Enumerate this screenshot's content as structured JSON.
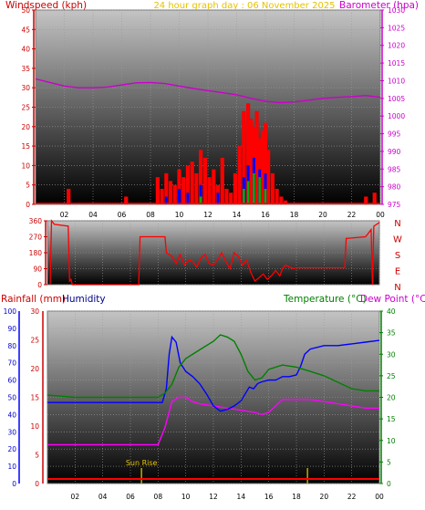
{
  "header": {
    "windspeed_label": "Windspeed (kph)",
    "graph_date_label": "24 hour graph day : 06 November 2025",
    "barometer_label": "Barometer (hpa)"
  },
  "footer_labels": {
    "rainfall_label": "Rainfall (mm)",
    "humidity_label": "Humidity",
    "temperature_label": "Temperature (°C)",
    "dewpoint_label": "Dew Point (°C)",
    "sunrise_label": "Sun Rise"
  },
  "colors": {
    "wind": "#ff0000",
    "gust_blue": "#0000ff",
    "gust_green": "#00aa00",
    "barometer": "#cc00cc",
    "direction": "#ff0000",
    "temperature": "#008000",
    "humidity": "#0000ff",
    "dewpoint": "#ff00ff",
    "rainfall": "#ff0000",
    "sun": "#bbaa00",
    "label_red": "#cc0000",
    "label_purple": "#cc00cc",
    "label_green": "#008000",
    "label_blue": "#000088",
    "label_yellow": "#e6c200"
  },
  "chart_data": [
    {
      "id": "wind",
      "type": "line",
      "x_ticks": [
        "02",
        "04",
        "06",
        "08",
        "10",
        "12",
        "14",
        "16",
        "18",
        "20",
        "22",
        "00"
      ],
      "x_range": [
        0,
        24
      ],
      "left_axis": {
        "label": "Windspeed (kph)",
        "ticks": [
          0,
          5,
          10,
          15,
          20,
          25,
          30,
          35,
          40,
          45,
          50
        ],
        "range": [
          0,
          50
        ]
      },
      "right_axis": {
        "label": "Barometer (hpa)",
        "ticks": [
          975,
          980,
          985,
          990,
          995,
          1000,
          1005,
          1010,
          1015,
          1020,
          1025,
          1030
        ],
        "range": [
          975,
          1030
        ]
      },
      "series": [
        {
          "name": "Windspeed (kph)",
          "axis": "left",
          "kind": "bars",
          "x": [
            2.3,
            6.3,
            8.5,
            8.8,
            9.1,
            9.4,
            9.7,
            10.0,
            10.3,
            10.6,
            10.9,
            11.2,
            11.5,
            11.8,
            12.1,
            12.4,
            12.7,
            13.0,
            13.3,
            13.6,
            13.9,
            14.2,
            14.5,
            14.8,
            15.0,
            15.2,
            15.4,
            15.6,
            15.8,
            16.0,
            16.2,
            16.5,
            16.8,
            17.1,
            17.4,
            23.0,
            23.6
          ],
          "y": [
            4,
            2,
            7,
            4,
            8,
            6,
            5,
            9,
            7,
            10,
            11,
            8,
            14,
            12,
            7,
            9,
            5,
            12,
            4,
            3,
            8,
            15,
            24,
            26,
            22,
            20,
            24,
            17,
            19,
            21,
            14,
            8,
            4,
            2,
            1,
            2,
            3
          ]
        },
        {
          "name": "Gust (blue)",
          "axis": "left",
          "kind": "bars",
          "x": [
            9.1,
            10.0,
            10.6,
            11.5,
            12.7,
            14.5,
            14.8,
            15.2,
            15.6,
            16.0
          ],
          "y": [
            2,
            4,
            3,
            5,
            3,
            7,
            10,
            12,
            9,
            8
          ]
        },
        {
          "name": "Gust (green)",
          "axis": "left",
          "kind": "bars",
          "x": [
            11.5,
            14.5,
            14.8,
            15.2,
            15.6,
            16.0
          ],
          "y": [
            2,
            4,
            6,
            8,
            7,
            4
          ]
        },
        {
          "name": "Barometer (hpa)",
          "axis": "right",
          "kind": "line",
          "x": [
            0,
            1,
            2,
            3,
            4,
            5,
            6,
            7,
            8,
            9,
            10,
            11,
            12,
            13,
            14,
            15,
            16,
            17,
            18,
            19,
            20,
            21,
            22,
            23,
            24
          ],
          "y": [
            1010.5,
            1009.5,
            1008.5,
            1008,
            1008,
            1008.2,
            1008.8,
            1009.4,
            1009.5,
            1009.2,
            1008.5,
            1007.8,
            1007.2,
            1006.6,
            1006,
            1005,
            1004.2,
            1003.8,
            1004,
            1004.5,
            1005,
            1005.3,
            1005.5,
            1005.8,
            1005.3
          ]
        }
      ]
    },
    {
      "id": "direction",
      "type": "line",
      "x_ticks": [
        "02",
        "04",
        "06",
        "08",
        "10",
        "12",
        "14",
        "16",
        "18",
        "20",
        "22",
        "00"
      ],
      "x_range": [
        0,
        24
      ],
      "left_axis": {
        "ticks": [
          0,
          90,
          180,
          270,
          360
        ],
        "range": [
          0,
          360
        ]
      },
      "right_axis_labels": [
        "N",
        "W",
        "S",
        "E",
        "N"
      ],
      "series": [
        {
          "name": "Wind direction",
          "kind": "line",
          "x": [
            0.2,
            0.3,
            0.5,
            1.5,
            1.6,
            1.7,
            1.8,
            1.9,
            2.0,
            6.6,
            6.7,
            7.5,
            7.6,
            8.5,
            8.6,
            9.0,
            9.3,
            9.6,
            9.9,
            10.2,
            10.5,
            10.8,
            11.1,
            11.4,
            11.7,
            12.0,
            12.3,
            12.6,
            12.9,
            13.2,
            13.5,
            13.8,
            14.1,
            14.4,
            14.7,
            15.0,
            15.3,
            15.6,
            15.9,
            16.2,
            16.5,
            16.8,
            17.0,
            17.2,
            17.5,
            17.8,
            18.0,
            20.0,
            21.5,
            21.6,
            23.0,
            23.1,
            23.3,
            23.4,
            23.5,
            23.6,
            24.0
          ],
          "y": [
            0,
            360,
            340,
            330,
            20,
            30,
            0,
            0,
            0,
            0,
            270,
            270,
            270,
            270,
            180,
            160,
            120,
            170,
            110,
            140,
            130,
            100,
            150,
            170,
            120,
            110,
            140,
            180,
            130,
            90,
            180,
            160,
            110,
            140,
            70,
            20,
            40,
            60,
            30,
            50,
            80,
            50,
            90,
            110,
            100,
            90,
            95,
            95,
            95,
            260,
            270,
            280,
            300,
            310,
            0,
            330,
            350
          ]
        }
      ]
    },
    {
      "id": "temperature",
      "type": "line",
      "x_ticks": [
        "02",
        "04",
        "06",
        "08",
        "10",
        "12",
        "14",
        "16",
        "18",
        "20",
        "22",
        "00"
      ],
      "x_range": [
        0,
        24
      ],
      "axes": {
        "humidity": {
          "ticks": [
            0,
            10,
            20,
            30,
            40,
            50,
            60,
            70,
            80,
            90,
            100
          ],
          "range": [
            0,
            100
          ]
        },
        "rainfall": {
          "ticks": [
            0,
            5,
            10,
            15,
            20,
            25,
            30
          ],
          "range": [
            0,
            30
          ]
        },
        "temperature": {
          "ticks": [
            0,
            5,
            10,
            15,
            20,
            25,
            30,
            35,
            40
          ],
          "range": [
            0,
            40
          ]
        }
      },
      "series": [
        {
          "name": "Temperature (°C)",
          "axis": "temperature",
          "x": [
            0,
            2,
            4,
            6,
            7,
            8,
            8.5,
            9,
            9.5,
            10,
            11,
            12,
            12.5,
            13,
            13.5,
            14,
            14.5,
            15,
            15.5,
            16,
            17,
            18,
            19,
            20,
            21,
            22,
            23,
            24
          ],
          "y": [
            20.5,
            20,
            20,
            20,
            20,
            20,
            21,
            23,
            27,
            29,
            31,
            33,
            34.5,
            34,
            33,
            30,
            26,
            24,
            24.5,
            26.5,
            27.5,
            27,
            26,
            25,
            23.5,
            22,
            21.5,
            21.5
          ]
        },
        {
          "name": "Humidity",
          "axis": "humidity",
          "x": [
            0,
            2,
            4,
            6,
            7,
            8,
            8.3,
            8.6,
            8.8,
            9.0,
            9.3,
            9.6,
            10,
            10.5,
            11,
            11.5,
            12,
            12.5,
            13,
            13.5,
            14,
            14.3,
            14.6,
            14.9,
            15.2,
            15.5,
            16,
            16.5,
            17,
            17.5,
            18,
            18.3,
            18.6,
            19,
            20,
            21,
            22,
            23,
            24
          ],
          "y": [
            47,
            47,
            47,
            47,
            47,
            47,
            47,
            55,
            75,
            85,
            82,
            70,
            65,
            62,
            58,
            52,
            45,
            42,
            43,
            45,
            48,
            52,
            56,
            55,
            58,
            59,
            60,
            60,
            62,
            62,
            63,
            68,
            75,
            78,
            80,
            80,
            81,
            82,
            83
          ]
        },
        {
          "name": "Dew Point (°C)",
          "axis": "temperature",
          "x": [
            0,
            2,
            4,
            6,
            7,
            8,
            8.5,
            9,
            9.5,
            10,
            10.5,
            11,
            12,
            13,
            14,
            15,
            15.5,
            16,
            16.5,
            17,
            18,
            19,
            20,
            21,
            22,
            23,
            24
          ],
          "y": [
            9,
            9,
            9,
            9,
            9,
            9,
            13,
            19,
            20,
            20,
            19,
            18.5,
            18,
            17.5,
            17,
            16.5,
            16,
            16.5,
            18,
            19.5,
            19.5,
            19.5,
            19,
            18.5,
            18,
            17.5,
            17.5
          ]
        },
        {
          "name": "Rainfall (mm)",
          "axis": "rainfall",
          "x": [
            0,
            24
          ],
          "y": [
            0.8,
            0.8
          ]
        }
      ],
      "annotations": [
        {
          "text": "Sun Rise",
          "x": 6.8
        },
        {
          "text": "",
          "x": 18.8
        }
      ]
    }
  ]
}
